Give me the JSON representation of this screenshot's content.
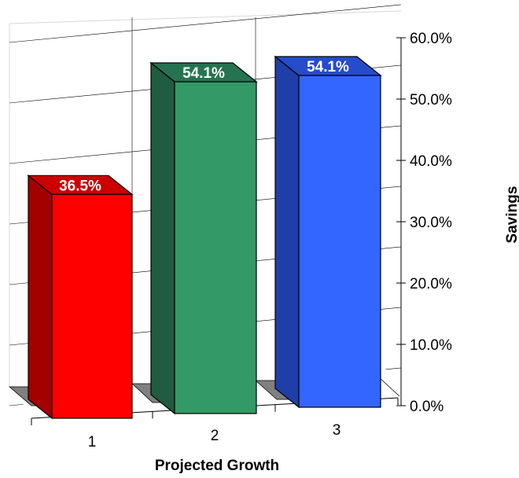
{
  "chart_data": {
    "type": "bar",
    "title": "",
    "categories": [
      "1",
      "2",
      "3"
    ],
    "values": [
      36.5,
      54.1,
      54.1
    ],
    "value_labels": [
      "36.5%",
      "54.1%",
      "54.1%"
    ],
    "xlabel": "Projected Growth",
    "ylabel": "Savings",
    "ylim": [
      0,
      60
    ],
    "y_ticks": [
      "0.0%",
      "10.0%",
      "20.0%",
      "30.0%",
      "40.0%",
      "50.0%",
      "60.0%"
    ],
    "y_axis_side": "right",
    "three_d": true,
    "grid": true,
    "bar_colors": {
      "front": [
        "#ff0000",
        "#339966",
        "#3366ff"
      ],
      "top": [
        "#cc0000",
        "#267350",
        "#264ccc"
      ],
      "side": [
        "#a30000",
        "#1f5c40",
        "#1f3fa8"
      ]
    },
    "floor_color": "#808080"
  }
}
